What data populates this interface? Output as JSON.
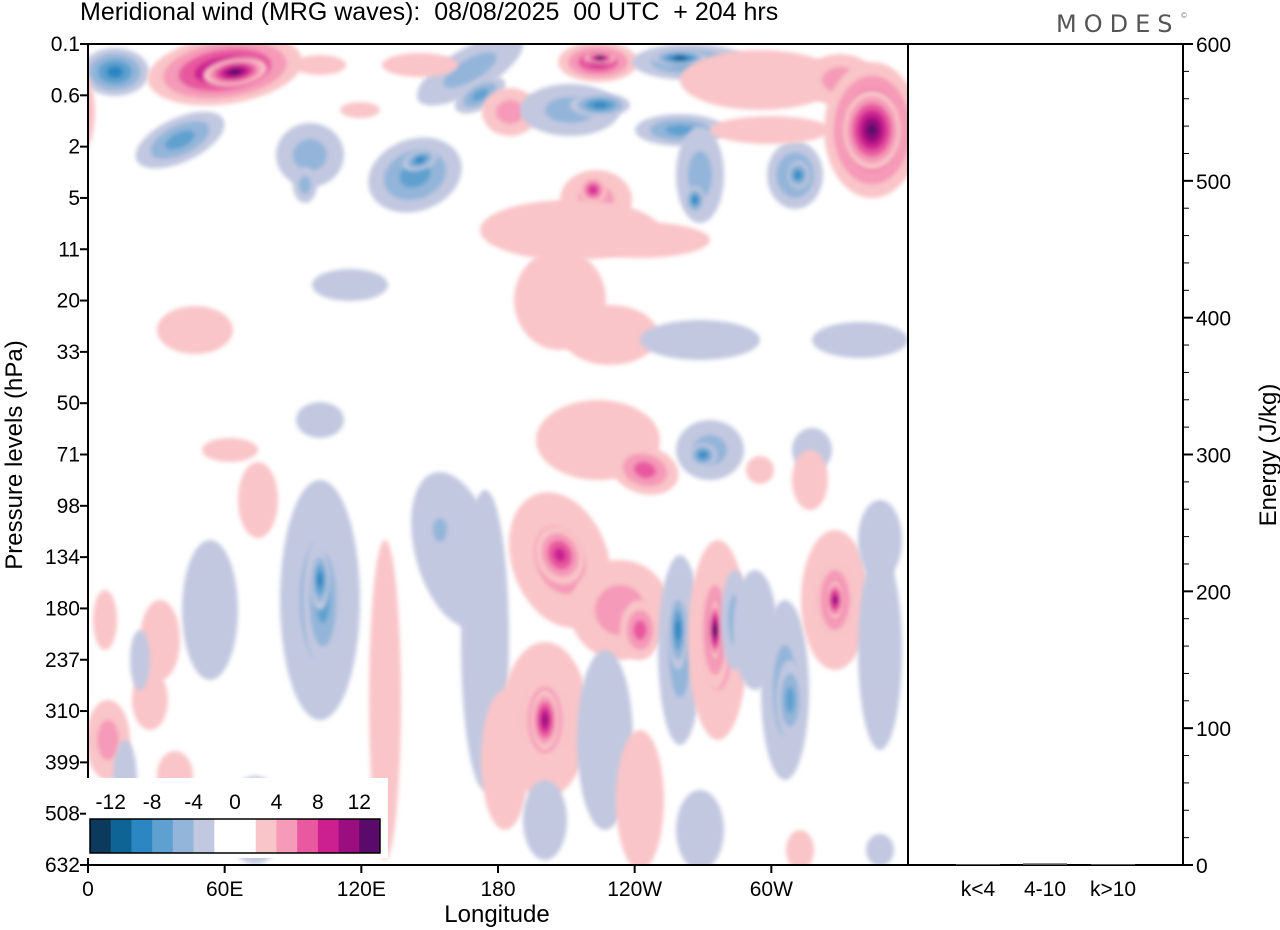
{
  "header": {
    "title": "Meridional wind (MRG waves):  08/08/2025  00 UTC  + 204 hrs",
    "logo": "MODES",
    "logo_mark": "©"
  },
  "chart_data": [
    {
      "type": "heatmap",
      "title": "Meridional wind (MRG waves):  08/08/2025  00 UTC  + 204 hrs",
      "xlabel": "Longitude",
      "ylabel": "Pressure levels (hPa)",
      "x_ticks": [
        "0",
        "60E",
        "120E",
        "180",
        "120W",
        "60W"
      ],
      "x_tick_values": [
        0,
        60,
        120,
        180,
        240,
        300
      ],
      "xlim": [
        0,
        360
      ],
      "y_ticks": [
        "0.1",
        "0.6",
        "2",
        "5",
        "11",
        "20",
        "33",
        "50",
        "71",
        "98",
        "134",
        "180",
        "237",
        "310",
        "399",
        "508",
        "632"
      ],
      "colorbar": {
        "labels": [
          "-12",
          "-8",
          "-4",
          "0",
          "4",
          "8",
          "12"
        ],
        "levels": [
          -14,
          -12,
          -10,
          -8,
          -6,
          -4,
          -2,
          2,
          4,
          6,
          8,
          10,
          12,
          14
        ],
        "colors": [
          "#0c3a5c",
          "#0f6496",
          "#2b86c2",
          "#5ea0cf",
          "#93b5d9",
          "#c2c8e0",
          "#ffffff",
          "#ffffff",
          "#f9c5c8",
          "#f59ab8",
          "#e8599f",
          "#cc2090",
          "#9b0e80",
          "#5a0a6a"
        ]
      },
      "features": [
        {
          "region": "stratosphere",
          "lon": 10,
          "level": "0.1-0.6",
          "value": -10
        },
        {
          "region": "stratosphere",
          "lon": 60,
          "level": "0.1-0.6",
          "value": 12
        },
        {
          "region": "stratosphere",
          "lon": 345,
          "level": "0.6-5",
          "value": 14
        },
        {
          "region": "troposphere",
          "lon": 105,
          "level": "134-237",
          "value": -8
        },
        {
          "region": "troposphere",
          "lon": 200,
          "level": "98-180",
          "value": 8
        },
        {
          "region": "troposphere",
          "lon": 195,
          "level": "310-399",
          "value": 10
        },
        {
          "region": "troposphere",
          "lon": 265,
          "level": "180-237",
          "value": 13
        },
        {
          "region": "troposphere",
          "lon": 252,
          "level": "180-310",
          "value": -8
        },
        {
          "region": "troposphere",
          "lon": 330,
          "level": "134-237",
          "value": 10
        }
      ]
    },
    {
      "type": "bar",
      "categories": [
        "k<4",
        "4-10",
        "k>10"
      ],
      "values": [
        0.3,
        1.2,
        0.3
      ],
      "ylabel": "Energy (J/kg)",
      "ylim": [
        0,
        600
      ],
      "y_ticks": [
        "0",
        "100",
        "200",
        "300",
        "400",
        "500",
        "600"
      ],
      "y_tick_values": [
        0,
        100,
        200,
        300,
        400,
        500,
        600
      ]
    }
  ]
}
